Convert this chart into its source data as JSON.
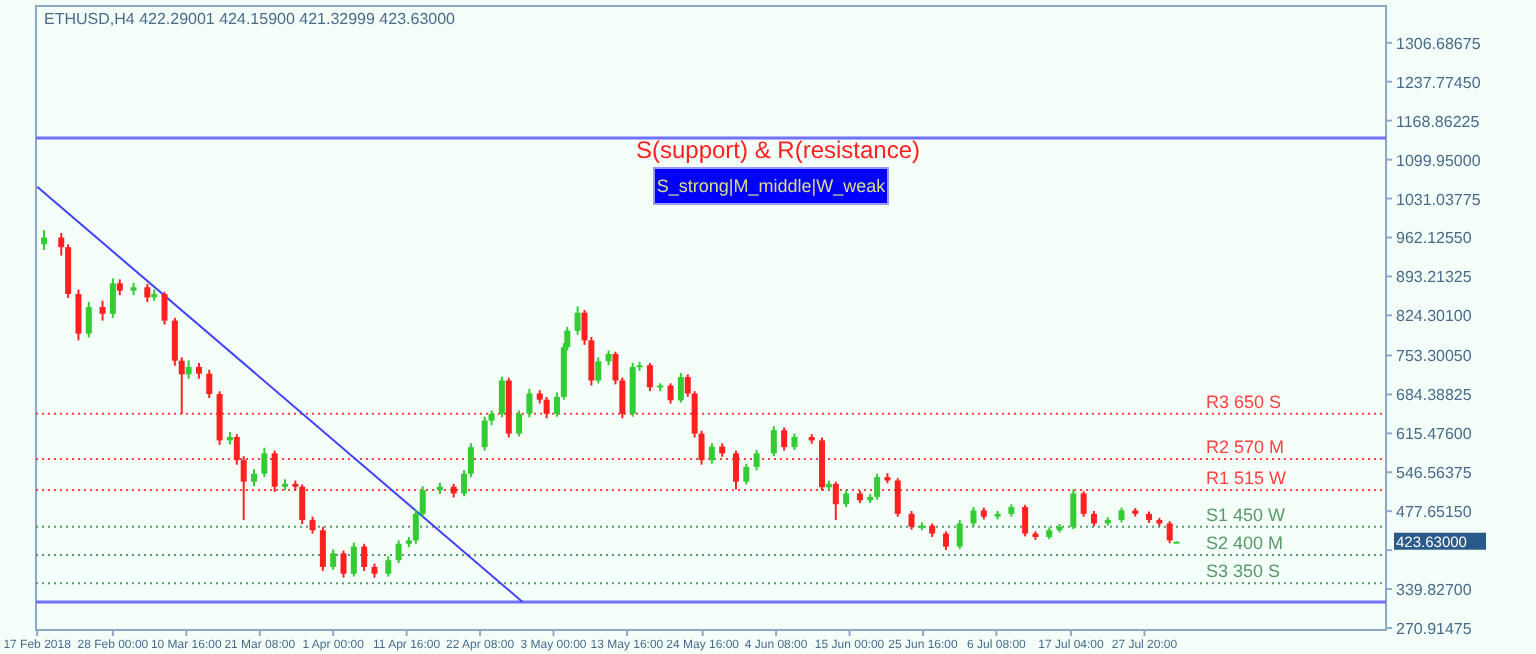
{
  "chart_data": {
    "type": "candlestick",
    "title": "ETHUSD,H4  422.29001 424.15900 421.32999 423.63000",
    "annotations": [
      "S(support) & R(resistance)",
      "S_strong|M_middle|W_weak",
      "423.63000"
    ],
    "x": [
      "2018-02-18T00:00",
      "2018-02-20T12:00",
      "2018-02-21T12:00",
      "2018-02-23T00:00",
      "2018-02-24T12:00",
      "2018-02-26T12:00",
      "2018-02-28T00:00",
      "2018-03-01T00:00",
      "2018-03-03T00:00",
      "2018-03-05T00:00",
      "2018-03-06T00:00",
      "2018-03-07T12:00",
      "2018-03-09T00:00",
      "2018-03-10T00:00",
      "2018-03-11T00:00",
      "2018-03-12T12:00",
      "2018-03-14T00:00",
      "2018-03-15T12:00",
      "2018-03-17T00:00",
      "2018-03-18T00:00",
      "2018-03-19T00:00",
      "2018-03-20T12:00",
      "2018-03-22T00:00",
      "2018-03-23T12:00",
      "2018-03-25T00:00",
      "2018-03-26T12:00",
      "2018-03-27T12:00",
      "2018-03-29T00:00",
      "2018-03-30T12:00",
      "2018-04-01T00:00",
      "2018-04-02T12:00",
      "2018-04-04T00:00",
      "2018-04-05T12:00",
      "2018-04-07T00:00",
      "2018-04-09T00:00",
      "2018-04-10T12:00",
      "2018-04-12T00:00",
      "2018-04-13T00:00",
      "2018-04-14T00:00",
      "2018-04-16T12:00",
      "2018-04-18T12:00",
      "2018-04-20T00:00",
      "2018-04-21T00:00",
      "2018-04-23T00:00",
      "2018-04-24T00:00",
      "2018-04-25T12:00",
      "2018-04-26T12:00",
      "2018-04-28T00:00",
      "2018-04-29T12:00",
      "2018-05-01T00:00",
      "2018-05-02T00:00",
      "2018-05-03T12:00",
      "2018-05-04T12:00",
      "2018-05-05T00:00",
      "2018-05-06T12:00",
      "2018-05-07T12:00",
      "2018-05-08T12:00",
      "2018-05-09T12:00",
      "2018-05-11T00:00",
      "2018-05-12T00:00",
      "2018-05-13T00:00",
      "2018-05-14T12:00",
      "2018-05-15T12:00",
      "2018-05-17T00:00",
      "2018-05-18T12:00",
      "2018-05-20T00:00",
      "2018-05-21T12:00",
      "2018-05-22T12:00",
      "2018-05-23T12:00",
      "2018-05-24T12:00",
      "2018-05-26T00:00",
      "2018-05-27T12:00",
      "2018-05-29T12:00",
      "2018-05-31T00:00",
      "2018-06-01T12:00",
      "2018-06-04T00:00",
      "2018-06-05T12:00",
      "2018-06-07T00:00",
      "2018-06-09T12:00",
      "2018-06-11T00:00",
      "2018-06-12T00:00",
      "2018-06-13T00:00",
      "2018-06-14T12:00",
      "2018-06-16T12:00",
      "2018-06-18T00:00",
      "2018-06-19T00:00",
      "2018-06-20T12:00",
      "2018-06-22T00:00",
      "2018-06-24T00:00",
      "2018-06-25T12:00",
      "2018-06-27T00:00",
      "2018-06-29T00:00",
      "2018-07-01T00:00",
      "2018-07-03T00:00",
      "2018-07-04T12:00",
      "2018-07-06T12:00",
      "2018-07-08T12:00",
      "2018-07-10T12:00",
      "2018-07-12T00:00",
      "2018-07-14T00:00",
      "2018-07-15T12:00",
      "2018-07-17T12:00",
      "2018-07-19T00:00",
      "2018-07-20T12:00",
      "2018-07-22T12:00",
      "2018-07-24T12:00",
      "2018-07-26T12:00",
      "2018-07-28T12:00",
      "2018-07-30T00:00",
      "2018-07-31T12:00",
      "2018-08-01T12:00"
    ],
    "ohlc": [
      [
        950,
        975,
        940,
        962
      ],
      [
        962,
        970,
        930,
        945
      ],
      [
        945,
        950,
        855,
        862
      ],
      [
        862,
        870,
        780,
        792
      ],
      [
        792,
        848,
        785,
        839
      ],
      [
        839,
        850,
        815,
        827
      ],
      [
        827,
        890,
        820,
        881
      ],
      [
        881,
        888,
        860,
        868
      ],
      [
        868,
        882,
        860,
        874
      ],
      [
        874,
        880,
        848,
        856
      ],
      [
        856,
        870,
        850,
        862
      ],
      [
        862,
        866,
        808,
        815
      ],
      [
        815,
        820,
        735,
        744
      ],
      [
        744,
        750,
        650,
        720
      ],
      [
        720,
        745,
        712,
        733
      ],
      [
        733,
        740,
        712,
        721
      ],
      [
        721,
        728,
        678,
        685
      ],
      [
        685,
        690,
        595,
        603
      ],
      [
        603,
        618,
        596,
        609
      ],
      [
        609,
        614,
        560,
        568
      ],
      [
        568,
        575,
        462,
        530
      ],
      [
        530,
        552,
        522,
        544
      ],
      [
        544,
        590,
        538,
        580
      ],
      [
        580,
        585,
        512,
        521
      ],
      [
        521,
        534,
        515,
        526
      ],
      [
        526,
        532,
        514,
        521
      ],
      [
        521,
        525,
        455,
        462
      ],
      [
        462,
        468,
        438,
        444
      ],
      [
        444,
        450,
        372,
        379
      ],
      [
        379,
        410,
        374,
        403
      ],
      [
        403,
        408,
        360,
        367
      ],
      [
        367,
        422,
        362,
        415
      ],
      [
        415,
        420,
        372,
        379
      ],
      [
        379,
        385,
        360,
        367
      ],
      [
        367,
        398,
        362,
        391
      ],
      [
        391,
        426,
        386,
        420
      ],
      [
        420,
        432,
        414,
        426
      ],
      [
        426,
        480,
        420,
        473
      ],
      [
        473,
        522,
        468,
        515
      ],
      [
        515,
        528,
        508,
        521
      ],
      [
        521,
        526,
        502,
        509
      ],
      [
        509,
        550,
        504,
        544
      ],
      [
        544,
        598,
        538,
        591
      ],
      [
        591,
        645,
        585,
        638
      ],
      [
        638,
        656,
        630,
        650
      ],
      [
        650,
        716,
        644,
        709
      ],
      [
        709,
        714,
        608,
        615
      ],
      [
        615,
        656,
        610,
        650
      ],
      [
        650,
        694,
        644,
        686
      ],
      [
        686,
        692,
        668,
        675
      ],
      [
        675,
        680,
        642,
        650
      ],
      [
        650,
        688,
        645,
        680
      ],
      [
        680,
        775,
        675,
        768
      ],
      [
        768,
        804,
        762,
        797
      ],
      [
        797,
        840,
        790,
        829
      ],
      [
        829,
        834,
        772,
        780
      ],
      [
        780,
        786,
        700,
        709
      ],
      [
        709,
        750,
        704,
        743
      ],
      [
        743,
        762,
        736,
        756
      ],
      [
        756,
        760,
        702,
        709
      ],
      [
        709,
        714,
        642,
        650
      ],
      [
        650,
        740,
        645,
        733
      ],
      [
        733,
        742,
        726,
        736
      ],
      [
        736,
        740,
        690,
        697
      ],
      [
        697,
        704,
        690,
        700
      ],
      [
        700,
        704,
        668,
        674
      ],
      [
        674,
        722,
        670,
        715
      ],
      [
        715,
        720,
        680,
        686
      ],
      [
        686,
        690,
        608,
        615
      ],
      [
        615,
        620,
        560,
        568
      ],
      [
        568,
        598,
        562,
        592
      ],
      [
        592,
        598,
        574,
        580
      ],
      [
        580,
        585,
        516,
        530
      ],
      [
        530,
        562,
        525,
        556
      ],
      [
        556,
        586,
        550,
        580
      ],
      [
        580,
        628,
        575,
        621
      ],
      [
        621,
        626,
        585,
        591
      ],
      [
        591,
        615,
        586,
        609
      ],
      [
        609,
        614,
        597,
        603
      ],
      [
        603,
        608,
        514,
        520
      ],
      [
        520,
        532,
        515,
        526
      ],
      [
        526,
        530,
        462,
        490
      ],
      [
        490,
        515,
        485,
        509
      ],
      [
        509,
        514,
        492,
        497
      ],
      [
        497,
        508,
        492,
        503
      ],
      [
        503,
        544,
        498,
        538
      ],
      [
        538,
        545,
        527,
        532
      ],
      [
        532,
        536,
        468,
        473
      ],
      [
        473,
        478,
        445,
        450
      ],
      [
        450,
        458,
        444,
        452
      ],
      [
        452,
        456,
        432,
        438
      ],
      [
        438,
        442,
        409,
        415
      ],
      [
        415,
        462,
        411,
        456
      ],
      [
        456,
        485,
        451,
        479
      ],
      [
        479,
        484,
        463,
        468
      ],
      [
        468,
        478,
        463,
        473
      ],
      [
        473,
        490,
        468,
        485
      ],
      [
        485,
        489,
        433,
        438
      ],
      [
        438,
        442,
        427,
        432
      ],
      [
        432,
        449,
        428,
        444
      ],
      [
        444,
        455,
        440,
        450
      ],
      [
        450,
        516,
        446,
        509
      ],
      [
        509,
        513,
        468,
        473
      ],
      [
        473,
        478,
        451,
        456
      ],
      [
        456,
        467,
        452,
        462
      ],
      [
        462,
        484,
        458,
        479
      ],
      [
        479,
        483,
        468,
        473
      ],
      [
        473,
        477,
        457,
        462
      ],
      [
        462,
        466,
        451,
        456
      ],
      [
        456,
        460,
        421,
        426
      ],
      [
        422.29001,
        424.159,
        421.32999,
        423.63
      ]
    ],
    "series": [
      {
        "type": "line",
        "x": [
          "2018-02-17T00:00",
          "2018-04-28T12:00"
        ],
        "values": [
          1052,
          317
        ],
        "color": "#4040ff"
      }
    ],
    "xlim": [
      "2018-02-16T20:00",
      "2018-08-31T22:00"
    ],
    "xticks": [
      {
        "value": "2018-02-17T00:00",
        "label": "17 Feb 2018"
      },
      {
        "value": "2018-02-28T00:00",
        "label": "28 Feb 00:00"
      },
      {
        "value": "2018-03-10T16:00",
        "label": "10 Mar 16:00"
      },
      {
        "value": "2018-03-21T08:00",
        "label": "21 Mar 08:00"
      },
      {
        "value": "2018-04-01T00:00",
        "label": "1 Apr 00:00"
      },
      {
        "value": "2018-04-11T16:00",
        "label": "11 Apr 16:00"
      },
      {
        "value": "2018-04-22T08:00",
        "label": "22 Apr 08:00"
      },
      {
        "value": "2018-05-03T00:00",
        "label": "3 May 00:00"
      },
      {
        "value": "2018-05-13T16:00",
        "label": "13 May 16:00"
      },
      {
        "value": "2018-05-24T16:00",
        "label": "24 May 16:00"
      },
      {
        "value": "2018-06-04T08:00",
        "label": "4 Jun 08:00"
      },
      {
        "value": "2018-06-15T00:00",
        "label": "15 Jun 00:00"
      },
      {
        "value": "2018-06-25T16:00",
        "label": "25 Jun 16:00"
      },
      {
        "value": "2018-07-06T08:00",
        "label": "6 Jul 08:00"
      },
      {
        "value": "2018-07-17T04:00",
        "label": "17 Jul 04:00"
      },
      {
        "value": "2018-07-27T20:00",
        "label": "27 Jul 20:00"
      }
    ],
    "ylim": [
      267.4,
      1371.8
    ],
    "yticks": [
      {
        "value": 1306.68675,
        "label": "1306.68675"
      },
      {
        "value": 1237.7745,
        "label": "1237.77450"
      },
      {
        "value": 1168.86225,
        "label": "1168.86225"
      },
      {
        "value": 1099.95,
        "label": "1099.95000"
      },
      {
        "value": 1031.03775,
        "label": "1031.03775"
      },
      {
        "value": 962.1255,
        "label": "962.12550"
      },
      {
        "value": 893.21325,
        "label": "893.21325"
      },
      {
        "value": 824.301,
        "label": "824.30100"
      },
      {
        "value": 753.3005,
        "label": "753.30050"
      },
      {
        "value": 684.38825,
        "label": "684.38825"
      },
      {
        "value": 615.476,
        "label": "615.47600"
      },
      {
        "value": 546.56375,
        "label": "546.56375"
      },
      {
        "value": 477.6515,
        "label": "477.65150"
      },
      {
        "value": 408.73925,
        "label": null
      },
      {
        "value": 339.827,
        "label": "339.82700"
      },
      {
        "value": 270.91475,
        "label": "270.91475"
      }
    ],
    "ref_lines": [
      {
        "axis": "y",
        "value": 650,
        "label": "R3  650  S",
        "color": "#ff4040",
        "line_style": "dotted"
      },
      {
        "axis": "y",
        "value": 570,
        "label": "R2  570  M",
        "color": "#ff4040",
        "line_style": "dotted"
      },
      {
        "axis": "y",
        "value": 515,
        "label": "R1 515 W",
        "color": "#ff4040",
        "line_style": "dotted"
      },
      {
        "axis": "y",
        "value": 450,
        "label": "S1 450  W",
        "color": "#5a9a6a",
        "line_style": "dotted"
      },
      {
        "axis": "y",
        "value": 400,
        "label": "S2 400  M",
        "color": "#5a9a6a",
        "line_style": "dotted"
      },
      {
        "axis": "y",
        "value": 350,
        "label": "S3  350 S",
        "color": "#5a9a6a",
        "line_style": "dotted"
      },
      {
        "axis": "y",
        "value": 1138,
        "color": "#7070ff",
        "line_style": "solid"
      },
      {
        "axis": "y",
        "value": 317,
        "color": "#7070ff",
        "line_style": "solid"
      }
    ],
    "grid": false
  }
}
